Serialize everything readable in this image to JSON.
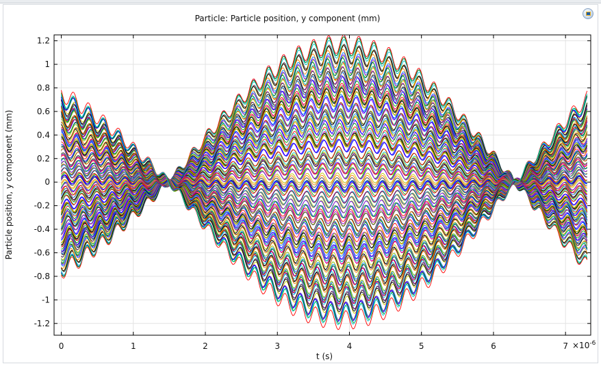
{
  "chart_data": {
    "type": "line",
    "title": "Particle: Particle position, y component (mm)",
    "xlabel": "t (s)",
    "ylabel": "Particle position, y component (mm)",
    "x_multiplier_label": "×10",
    "x_multiplier_exponent": "-6",
    "xlim": [
      -0.1,
      7.35
    ],
    "ylim": [
      -1.3,
      1.25
    ],
    "x_ticks": [
      0,
      1,
      2,
      3,
      4,
      5,
      6,
      7
    ],
    "x_tick_labels": [
      "0",
      "1",
      "2",
      "3",
      "4",
      "5",
      "6",
      "7"
    ],
    "y_ticks": [
      -1.2,
      -1,
      -0.8,
      -0.6,
      -0.4,
      -0.2,
      0,
      0.2,
      0.4,
      0.6,
      0.8,
      1,
      1.2
    ],
    "y_tick_labels": [
      "-1.2",
      "-1",
      "-0.8",
      "-0.6",
      "-0.4",
      "-0.2",
      "0",
      "0.2",
      "0.4",
      "0.6",
      "0.8",
      "1",
      "1.2"
    ],
    "grid": true,
    "legend": "none",
    "series_count": 160,
    "series_model": "y(t) ≈ y0·cos(ω·t) with ω ≈ 1.05×10^6 rad/s plus a ripple of period ≈ 0.21×10^-6 s and amplitude ≈ 0.05 mm; y0 spans −0.95 to 0.95 mm at t = 0; envelope reaches about ±1.18 mm near t ≈ 3.7×10^-6 s; all trajectories cross y = 0 near t ≈ 1.5×10^-6 s and t ≈ 6.3×10^-6 s",
    "series_samples": [
      {
        "y0": 0.95,
        "x": [
          0,
          1.5,
          3.7,
          6.3,
          7.35
        ],
        "y": [
          0.95,
          0.0,
          -1.18,
          0.0,
          0.62
        ]
      },
      {
        "y0": 0.5,
        "x": [
          0,
          1.5,
          3.7,
          6.3,
          7.35
        ],
        "y": [
          0.5,
          0.0,
          -0.6,
          0.0,
          0.32
        ]
      },
      {
        "y0": 0.0,
        "x": [
          0,
          1.5,
          3.7,
          6.3,
          7.35
        ],
        "y": [
          0.0,
          0.0,
          0.0,
          0.0,
          0.0
        ]
      },
      {
        "y0": -0.5,
        "x": [
          0,
          1.5,
          3.7,
          6.3,
          7.35
        ],
        "y": [
          -0.5,
          0.0,
          0.6,
          0.0,
          -0.32
        ]
      },
      {
        "y0": -0.95,
        "x": [
          0,
          1.5,
          3.7,
          6.3,
          7.35
        ],
        "y": [
          -0.95,
          0.0,
          1.18,
          0.0,
          -0.6
        ]
      }
    ],
    "palette": [
      "#0000ff",
      "#00a000",
      "#ff0000",
      "#00c8c8",
      "#c800c8",
      "#c8c800",
      "#404040",
      "#000000",
      "#ff8000",
      "#0080ff",
      "#80c000",
      "#8000ff"
    ]
  }
}
